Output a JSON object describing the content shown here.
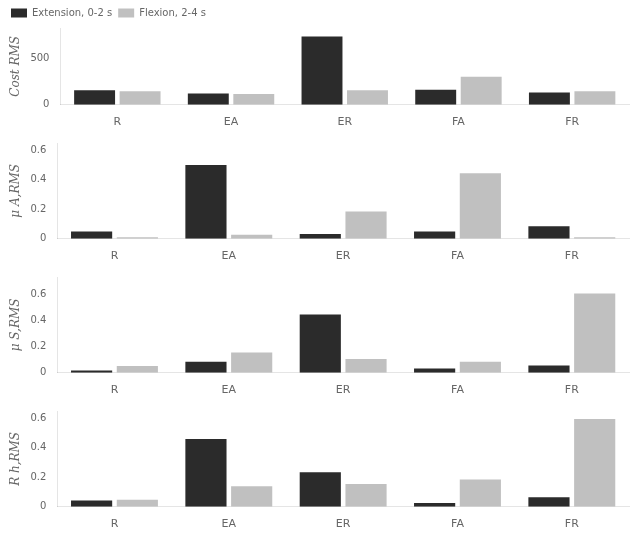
{
  "chart_data": [
    {
      "type": "bar",
      "categories": [
        "R",
        "EA",
        "ER",
        "FA",
        "FR"
      ],
      "ylabel": "Cost RMS",
      "series": [
        {
          "name": "Extension, 0-2 s",
          "color": "#2b2b2b",
          "values": [
            155,
            120,
            730,
            160,
            130
          ]
        },
        {
          "name": "Flexion, 2-4 s",
          "color": "#c0c0c0",
          "values": [
            145,
            115,
            155,
            300,
            145
          ]
        }
      ],
      "ylim": [
        0,
        820
      ],
      "yticks": [
        0,
        500
      ],
      "grid": false,
      "legend": "upper left"
    },
    {
      "type": "bar",
      "categories": [
        "R",
        "EA",
        "ER",
        "FA",
        "FR"
      ],
      "ylabel": "μ A,RMS",
      "series": [
        {
          "color": "#2b2b2b",
          "values": [
            0.05,
            0.5,
            0.033,
            0.05,
            0.085
          ]
        },
        {
          "color": "#c0c0c0",
          "values": [
            0.01,
            0.028,
            0.185,
            0.445,
            0.01
          ]
        }
      ],
      "ylim": [
        0,
        0.65
      ],
      "yticks": [
        0,
        0.2,
        0.4,
        0.6
      ],
      "grid": false
    },
    {
      "type": "bar",
      "categories": [
        "R",
        "EA",
        "ER",
        "FA",
        "FR"
      ],
      "ylabel": "μ S,RMS",
      "series": [
        {
          "color": "#2b2b2b",
          "values": [
            0.018,
            0.085,
            0.445,
            0.033,
            0.055
          ]
        },
        {
          "color": "#c0c0c0",
          "values": [
            0.052,
            0.155,
            0.105,
            0.085,
            0.605
          ]
        }
      ],
      "ylim": [
        0,
        0.73
      ],
      "yticks": [
        0,
        0.2,
        0.4,
        0.6
      ],
      "grid": false
    },
    {
      "type": "bar",
      "categories": [
        "R",
        "EA",
        "ER",
        "FA",
        "FR"
      ],
      "ylabel": "R h,RMS",
      "series": [
        {
          "color": "#2b2b2b",
          "values": [
            0.042,
            0.46,
            0.235,
            0.025,
            0.065
          ]
        },
        {
          "color": "#c0c0c0",
          "values": [
            0.048,
            0.14,
            0.155,
            0.185,
            0.595
          ]
        }
      ],
      "ylim": [
        0,
        0.65
      ],
      "yticks": [
        0,
        0.2,
        0.4,
        0.6
      ],
      "grid": false
    }
  ]
}
